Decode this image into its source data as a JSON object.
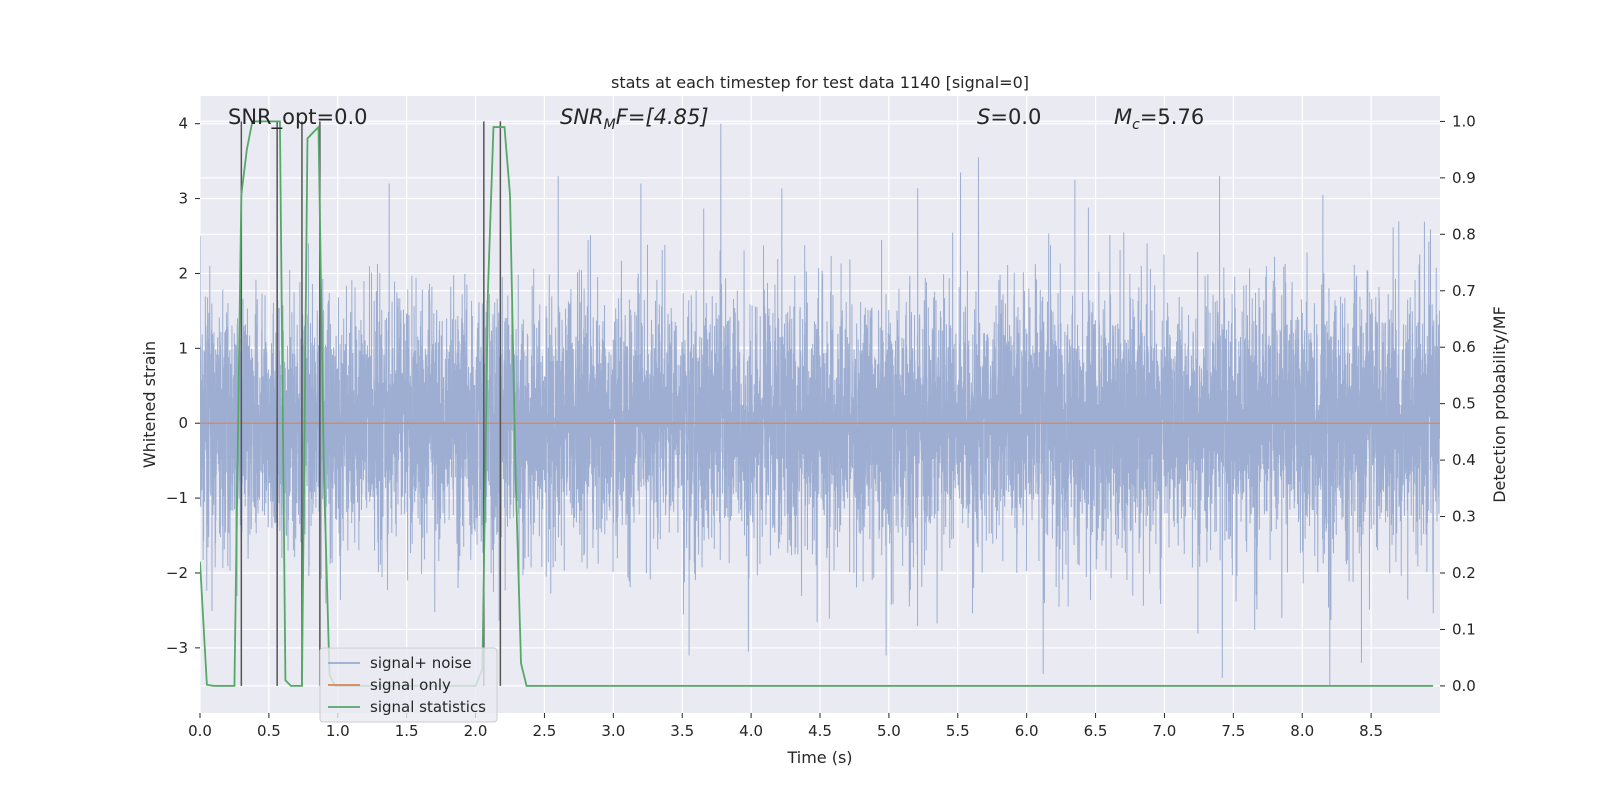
{
  "chart_data": {
    "type": "line",
    "title": "stats at each timestep for test data 1140 [signal=0]",
    "xlabel": "Time (s)",
    "ylabel": "Whitened strain",
    "y2label": "Detection probability/MF",
    "xlim": [
      0.0,
      9.0
    ],
    "ylim": [
      -3.87,
      4.37
    ],
    "y2lim": [
      -0.048,
      1.045
    ],
    "xticks": [
      "0.0",
      "0.5",
      "1.0",
      "1.5",
      "2.0",
      "2.5",
      "3.0",
      "3.5",
      "4.0",
      "4.5",
      "5.0",
      "5.5",
      "6.0",
      "6.5",
      "7.0",
      "7.5",
      "8.0",
      "8.5"
    ],
    "yticks": [
      "−3",
      "−2",
      "−1",
      "0",
      "1",
      "2",
      "3",
      "4"
    ],
    "y2ticks": [
      "0.0",
      "0.1",
      "0.2",
      "0.3",
      "0.4",
      "0.5",
      "0.6",
      "0.7",
      "0.8",
      "0.9",
      "1.0"
    ],
    "grid": true,
    "legend_position": "lower-left",
    "colors": {
      "background": "#eaeaf2",
      "grid": "#ffffff",
      "noise": "#99abd0",
      "signal_only": "#dd8452",
      "statistics": "#55a868",
      "markers": "#555555"
    },
    "annotations": {
      "snr_opt": "SNR_opt=0.0",
      "snr_mf_main": "SNR",
      "snr_mf_sub": "M",
      "snr_mf_tail": "F=[4.85]",
      "s_main": "S",
      "s_tail": "=0.0",
      "mc_main": "M",
      "mc_sub": "c",
      "mc_tail": "=5.76"
    },
    "series": [
      {
        "name": "signal+ noise",
        "kind": "noise",
        "rms": 0.85,
        "t_end": 9.0,
        "peaks": [
          [
            3.78,
            4.0
          ],
          [
            5.65,
            3.55
          ],
          [
            5.52,
            3.35
          ],
          [
            6.35,
            3.25
          ],
          [
            2.6,
            3.3
          ],
          [
            3.2,
            3.2
          ],
          [
            7.4,
            3.3
          ],
          [
            8.15,
            3.05
          ],
          [
            8.2,
            -3.5
          ],
          [
            7.42,
            -3.4
          ],
          [
            6.12,
            -3.35
          ],
          [
            3.55,
            -3.1
          ],
          [
            3.98,
            -3.05
          ],
          [
            4.98,
            -3.1
          ],
          [
            8.43,
            -3.2
          ]
        ]
      },
      {
        "name": "signal only",
        "kind": "flat",
        "value": 0.0
      },
      {
        "name": "signal statistics",
        "kind": "stat",
        "x": [
          0.0,
          0.05,
          0.1,
          0.15,
          0.2,
          0.25,
          0.3,
          0.34,
          0.38,
          0.42,
          0.46,
          0.5,
          0.54,
          0.58,
          0.62,
          0.66,
          0.7,
          0.74,
          0.78,
          0.82,
          0.86,
          0.9,
          0.94,
          0.98,
          1.05,
          1.1,
          2.0,
          2.05,
          2.09,
          2.13,
          2.17,
          2.21,
          2.25,
          2.29,
          2.33,
          2.37,
          2.45,
          3.0,
          4.0,
          5.0,
          6.0,
          7.0,
          8.0,
          8.95
        ],
        "y": [
          0.22,
          0.002,
          0.0,
          0.0,
          0.0,
          0.0,
          0.87,
          0.95,
          1.0,
          1.0,
          1.0,
          1.0,
          1.0,
          1.0,
          0.01,
          0.0,
          0.0,
          0.0,
          0.97,
          0.98,
          0.99,
          0.37,
          0.02,
          0.0,
          0.0,
          0.0,
          0.0,
          0.03,
          0.7,
          0.99,
          0.99,
          0.99,
          0.87,
          0.38,
          0.04,
          0.0,
          0.0,
          0.0,
          0.0,
          0.0,
          0.0,
          0.0,
          0.0,
          0.0
        ]
      }
    ],
    "vlines": [
      {
        "x": 0.3,
        "y0": 0.0,
        "y1": 1.0
      },
      {
        "x": 0.56,
        "y0": 0.0,
        "y1": 1.0
      },
      {
        "x": 0.74,
        "y0": 0.0,
        "y1": 1.0
      },
      {
        "x": 0.87,
        "y0": 0.0,
        "y1": 1.0
      },
      {
        "x": 2.06,
        "y0": 0.0,
        "y1": 1.0
      },
      {
        "x": 2.18,
        "y0": 0.0,
        "y1": 1.0
      }
    ]
  }
}
